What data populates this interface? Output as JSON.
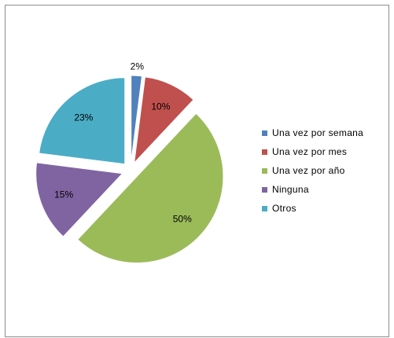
{
  "chart_data": {
    "type": "pie",
    "title": "",
    "exploded": true,
    "start_angle_deg": 0,
    "direction": "clockwise",
    "legend_position": "right",
    "slices": [
      {
        "label": "Una vez por semana",
        "value": 2,
        "display": "2%",
        "color": "#4f81bd"
      },
      {
        "label": "Una vez por mes",
        "value": 10,
        "display": "10%",
        "color": "#c0504d"
      },
      {
        "label": "Una vez por año",
        "value": 50,
        "display": "50%",
        "color": "#9bbb59"
      },
      {
        "label": "Ninguna",
        "value": 15,
        "display": "15%",
        "color": "#8064a2"
      },
      {
        "label": "Otros",
        "value": 23,
        "display": "23%",
        "color": "#4bacc6"
      }
    ]
  }
}
